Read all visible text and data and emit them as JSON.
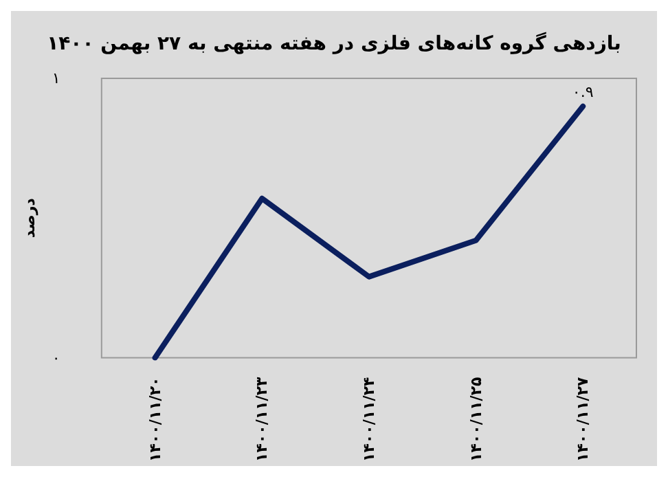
{
  "chart_data": {
    "type": "line",
    "title": "بازدهی گروه کانه‌های فلزی در هفته منتهی به ۲۷ بهمن ۱۴۰۰",
    "ylabel": "درصد",
    "categories": [
      "۱۴۰۰/۱۱/۲۰",
      "۱۴۰۰/۱۱/۲۳",
      "۱۴۰۰/۱۱/۲۴",
      "۱۴۰۰/۱۱/۲۵",
      "۱۴۰۰/۱۱/۲۷"
    ],
    "series": [
      {
        "color": "#0b1f5e",
        "values": [
          0,
          0.57,
          0.29,
          0.42,
          0.9
        ],
        "value_labels": [
          null,
          null,
          null,
          null,
          "۰.۹"
        ]
      }
    ],
    "ylim": [
      0,
      1
    ],
    "yticks": [
      {
        "value": 0,
        "label": "۰"
      },
      {
        "value": 1,
        "label": "۱"
      }
    ],
    "grid": false,
    "marker": "none",
    "line_style": "solid"
  }
}
